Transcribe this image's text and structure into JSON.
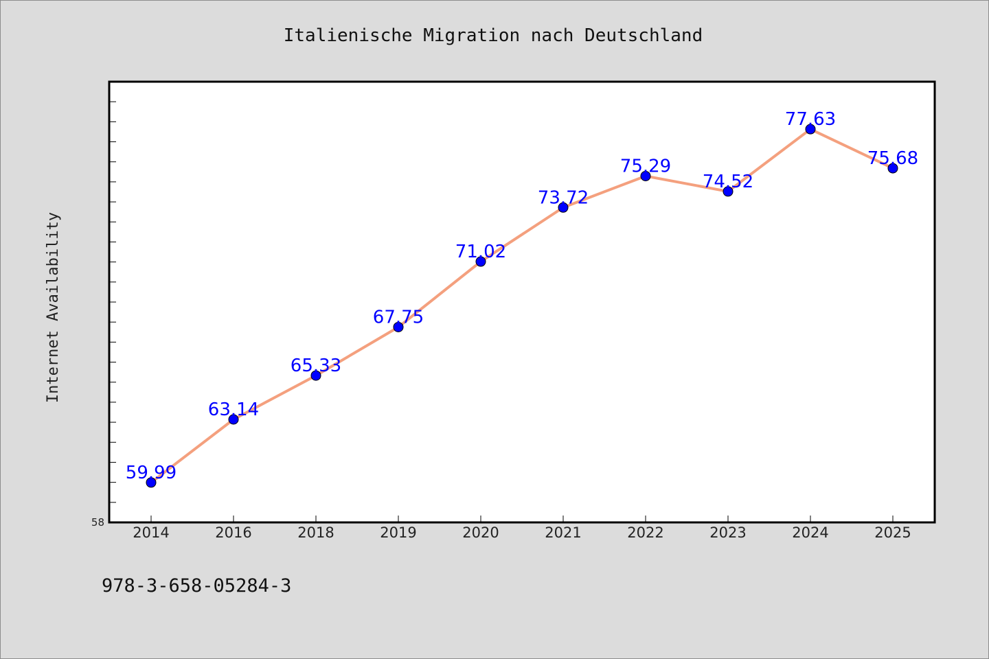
{
  "chart_data": {
    "type": "line",
    "title": "Italienische Migration nach Deutschland",
    "ylabel": "Internet Availability",
    "xlabel": "",
    "categories": [
      "2014",
      "2016",
      "2018",
      "2019",
      "2020",
      "2021",
      "2022",
      "2023",
      "2024",
      "2025"
    ],
    "series": [
      {
        "values": [
          59.99,
          63.14,
          65.33,
          67.75,
          71.02,
          73.72,
          75.29,
          74.52,
          77.63,
          75.68
        ],
        "data_labels": [
          "59.99",
          "63.14",
          "65.33",
          "67.75",
          "71.02",
          "73.72",
          "75.29",
          "74.52",
          "77.63",
          "75.68"
        ],
        "line_color": "#f4a07e",
        "marker_color": "#0000ff"
      }
    ],
    "ylim": [
      58,
      80
    ],
    "y_min_label": "58",
    "grid": false,
    "legend": "none"
  },
  "footer": {
    "isbn": "978-3-658-05284-3"
  }
}
